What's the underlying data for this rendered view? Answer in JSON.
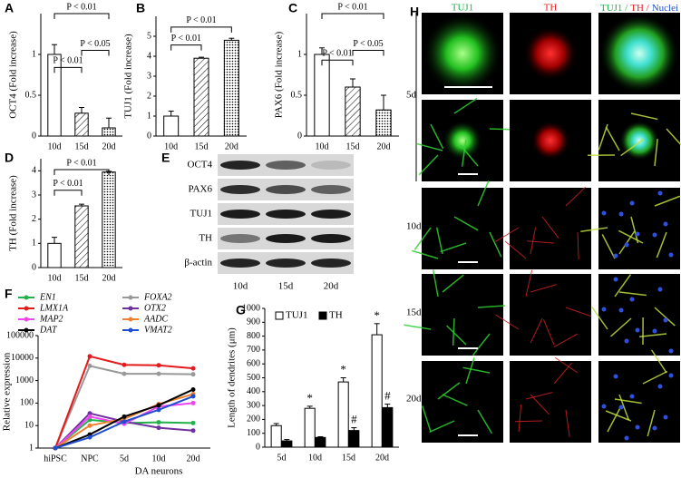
{
  "chart_data": [
    {
      "panel": "A",
      "type": "bar",
      "ylabel": "OCT4 (Fold increase)",
      "categories": [
        "10d",
        "15d",
        "20d"
      ],
      "values": [
        1,
        0.28,
        0.1
      ],
      "errors": [
        0.12,
        0.07,
        0.12
      ],
      "color": "#ffffff",
      "fills": [
        "plain",
        "hatch",
        "dots"
      ],
      "ylim": [
        0,
        1.5
      ],
      "yticks": [
        0,
        0.5,
        1
      ],
      "annotations": [
        "P < 0.01",
        "P < 0.01",
        "P < 0.05"
      ]
    },
    {
      "panel": "B",
      "type": "bar",
      "ylabel": "TUJ1 (Fold increase)",
      "categories": [
        "10d",
        "15d",
        "20d"
      ],
      "values": [
        1,
        3.9,
        4.8
      ],
      "errors": [
        0.25,
        0.05,
        0.1
      ],
      "color": "#ffffff",
      "fills": [
        "plain",
        "hatch",
        "dots"
      ],
      "ylim": [
        0,
        6
      ],
      "yticks": [
        0,
        1,
        2,
        3,
        4,
        5
      ],
      "annotations": [
        "P < 0.01",
        "P < 0.01"
      ]
    },
    {
      "panel": "C",
      "type": "bar",
      "ylabel": "PAX6 (Fold increase)",
      "categories": [
        "10d",
        "15d",
        "20d"
      ],
      "values": [
        1,
        0.6,
        0.32
      ],
      "errors": [
        0.08,
        0.1,
        0.18
      ],
      "color": "#ffffff",
      "fills": [
        "plain",
        "hatch",
        "dots"
      ],
      "ylim": [
        0,
        1.5
      ],
      "yticks": [
        0,
        0.5,
        1
      ],
      "annotations": [
        "P < 0.01",
        "P < 0.01",
        "P < 0.05"
      ]
    },
    {
      "panel": "D",
      "type": "bar",
      "ylabel": "TH (Fold increase)",
      "categories": [
        "10d",
        "15d",
        "20d"
      ],
      "values": [
        1,
        2.55,
        3.95
      ],
      "errors": [
        0.25,
        0.07,
        0.03
      ],
      "color": "#ffffff",
      "fills": [
        "plain",
        "hatch",
        "dots"
      ],
      "ylim": [
        0,
        4.5
      ],
      "yticks": [
        0,
        1,
        2,
        3,
        4
      ],
      "annotations": [
        "P < 0.01",
        "P < 0.01"
      ]
    },
    {
      "panel": "F",
      "type": "line",
      "ylabel": "Relative expression",
      "xlabel": "DA neurons",
      "log": true,
      "categories": [
        "hiPSC",
        "NPC",
        "5d",
        "10d",
        "20d"
      ],
      "ylim": [
        1,
        100000
      ],
      "yticks": [
        1,
        10,
        100,
        1000,
        10000,
        100000
      ],
      "series": [
        {
          "name": "EN1",
          "color": "#22b14c",
          "values": [
            1,
            18,
            13,
            14,
            13
          ]
        },
        {
          "name": "FOXA2",
          "color": "#999999",
          "values": [
            1,
            4500,
            2000,
            2000,
            1900
          ]
        },
        {
          "name": "LMX1A",
          "color": "#e41a1c",
          "values": [
            1,
            12000,
            5000,
            4800,
            3500
          ]
        },
        {
          "name": "OTX2",
          "color": "#7030a0",
          "values": [
            1,
            35,
            15,
            8,
            6
          ]
        },
        {
          "name": "MAP2",
          "color": "#ee44ee",
          "values": [
            1,
            25,
            12,
            70,
            100
          ]
        },
        {
          "name": "AADC",
          "color": "#f08030",
          "values": [
            1,
            10,
            20,
            90,
            250
          ]
        },
        {
          "name": "DAT",
          "color": "#000000",
          "values": [
            1,
            4,
            25,
            80,
            400
          ]
        },
        {
          "name": "VMAT2",
          "color": "#1f4fd0",
          "values": [
            1,
            3,
            15,
            50,
            200
          ]
        }
      ]
    },
    {
      "panel": "G",
      "type": "grouped-bar",
      "ylabel": "Length of dendrites (μm)",
      "categories": [
        "5d",
        "10d",
        "15d",
        "20d"
      ],
      "ylim": [
        0,
        1000
      ],
      "yticks": [
        0,
        100,
        200,
        300,
        400,
        500,
        600,
        700,
        800,
        900,
        1000
      ],
      "series": [
        {
          "name": "TUJ1",
          "color": "#ffffff",
          "values": [
            155,
            280,
            470,
            810
          ],
          "errors": [
            15,
            15,
            30,
            80
          ]
        },
        {
          "name": "TH",
          "color": "#000000",
          "values": [
            45,
            70,
            120,
            285
          ],
          "errors": [
            10,
            5,
            20,
            25
          ]
        }
      ],
      "annotations": [
        "*",
        "*",
        "*",
        "#",
        "#"
      ]
    }
  ],
  "blot": {
    "panel": "E",
    "rows": [
      "OCT4",
      "PAX6",
      "TUJ1",
      "TH",
      "β-actin"
    ],
    "lanes": [
      "10d",
      "15d",
      "20d"
    ]
  },
  "images": {
    "panel": "H",
    "columns": [
      "TUJ1",
      "TH"
    ],
    "merge_header": [
      "TUJ1 /",
      "TH /",
      "Nuclei"
    ],
    "rows": [
      "5d",
      "10d",
      "15d",
      "20d"
    ]
  }
}
